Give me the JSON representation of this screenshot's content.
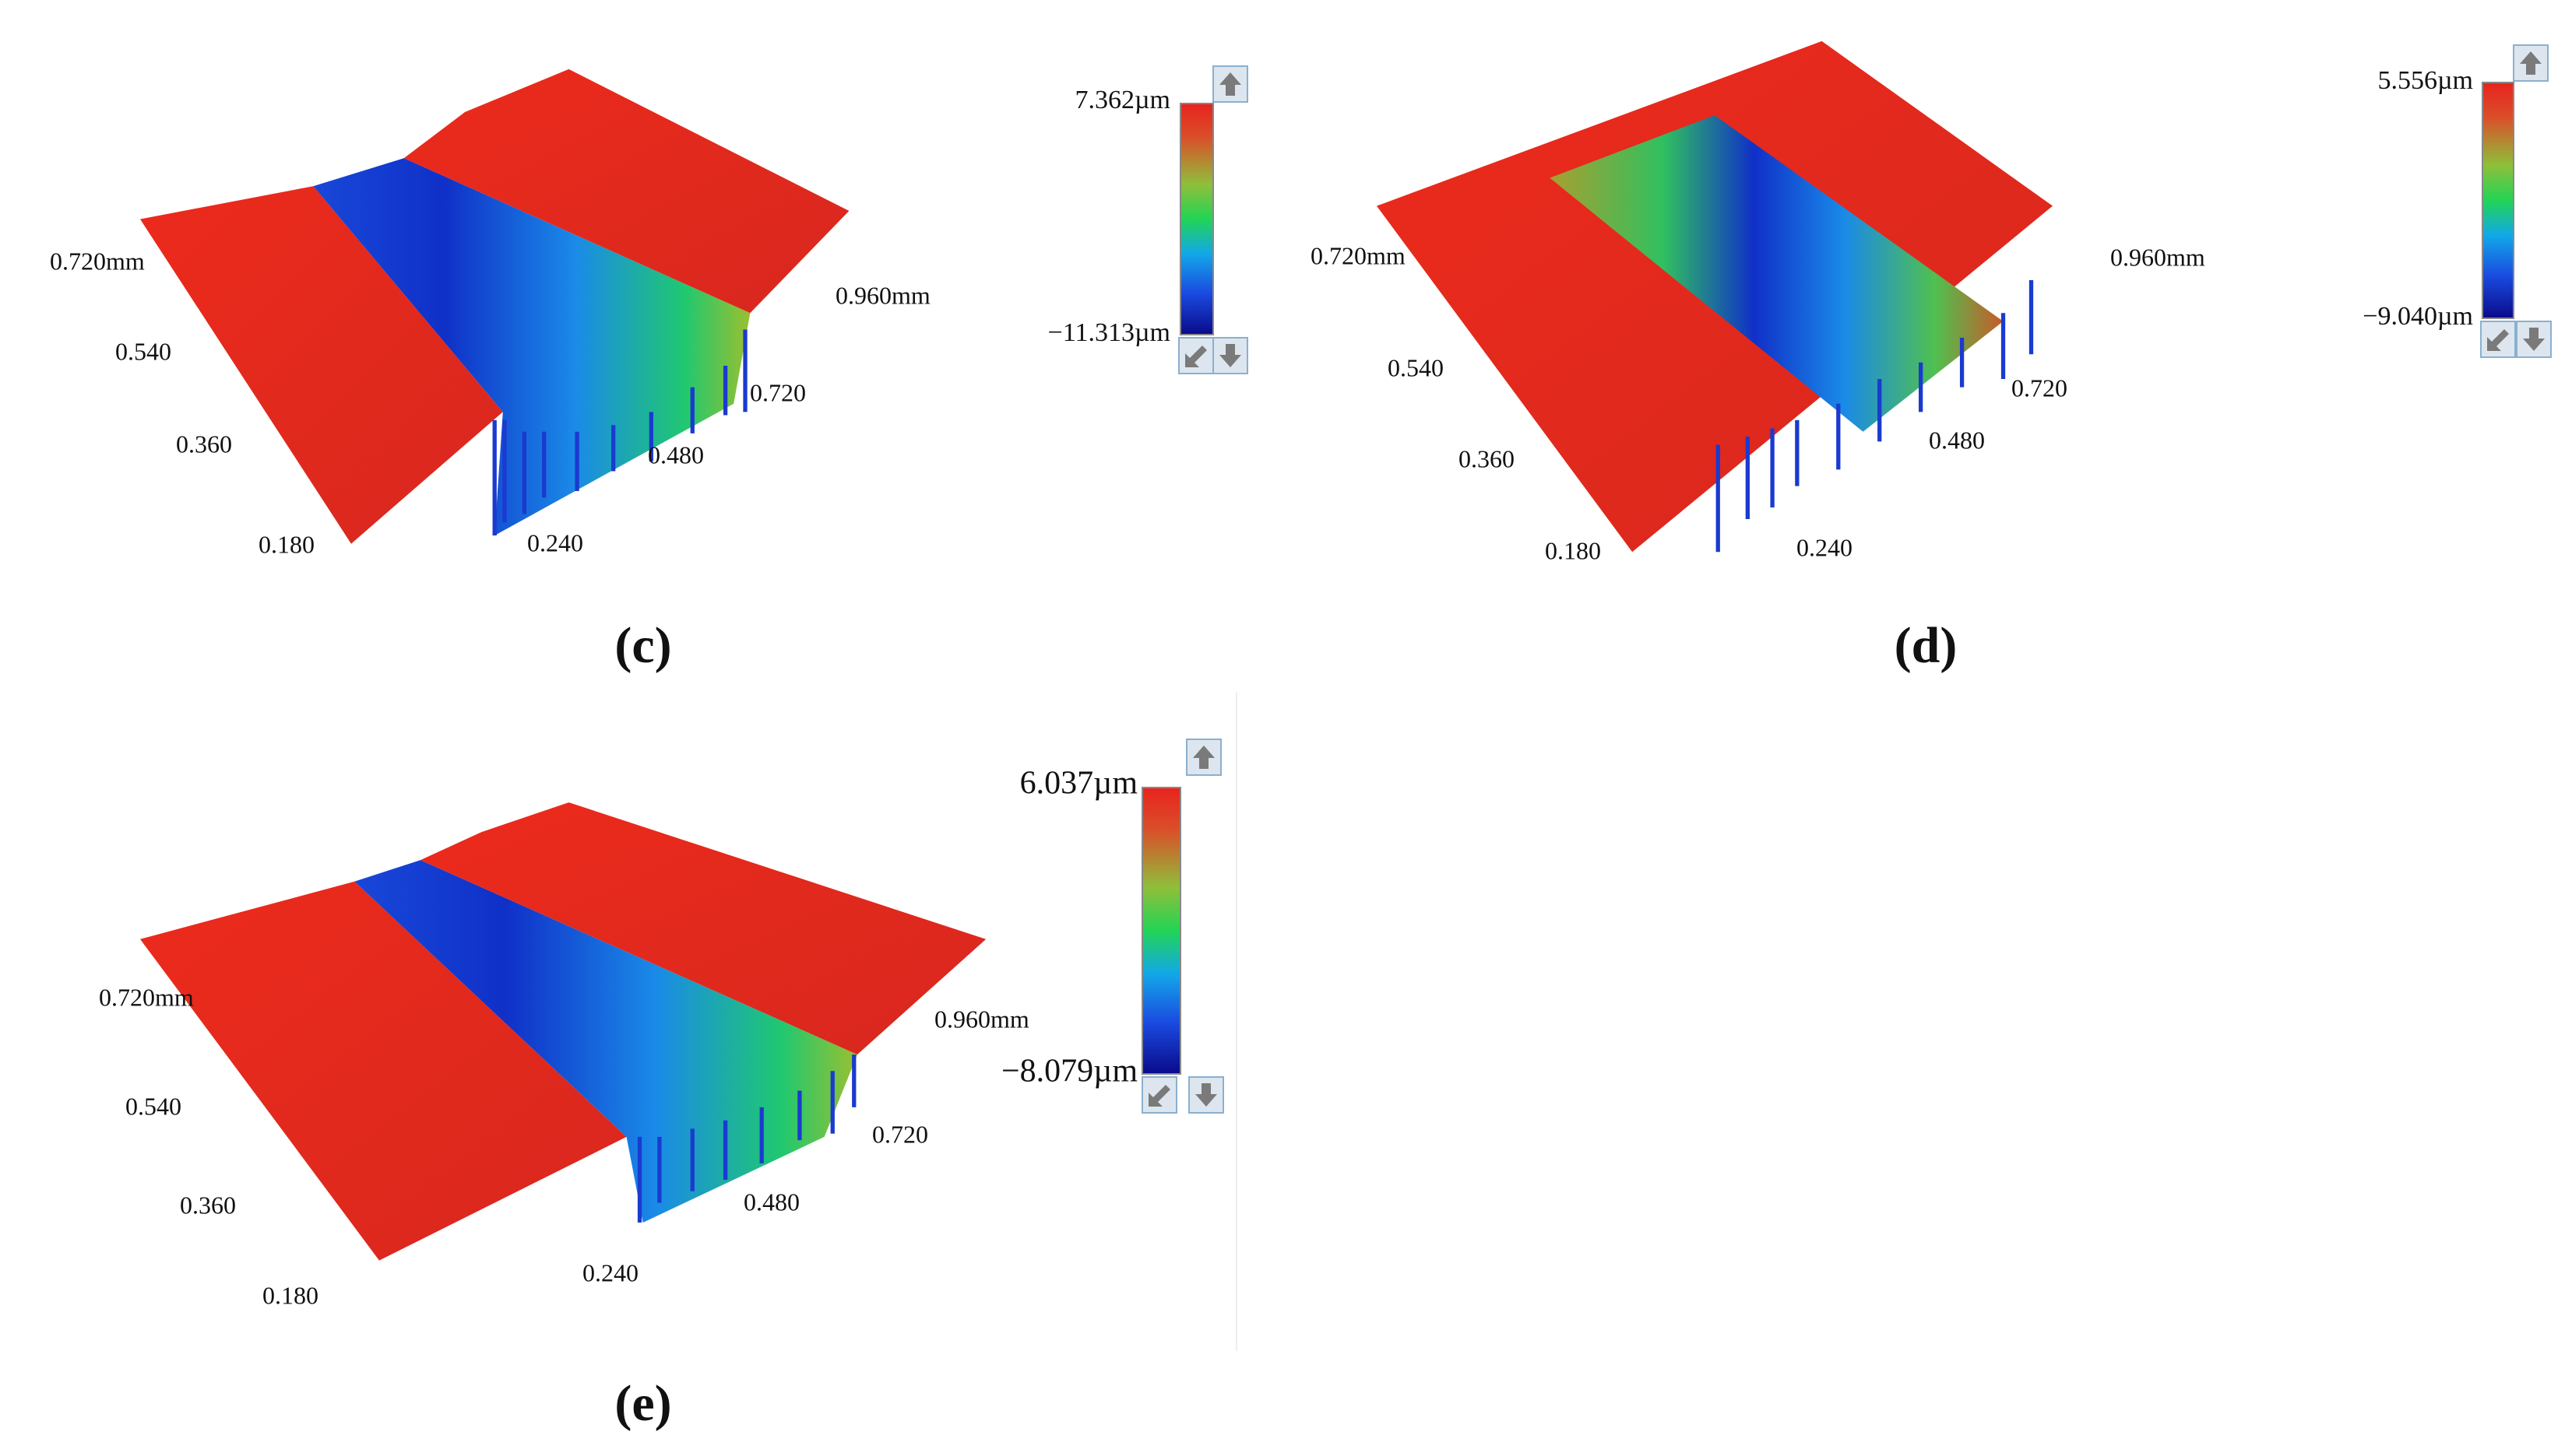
{
  "panels": [
    {
      "label": "(c)",
      "left_ticks": [
        "0.720mm",
        "0.540",
        "0.360",
        "0.180"
      ],
      "right_ticks": [
        "0.240",
        "0.480",
        "0.720",
        "0.960mm"
      ],
      "colorbar": {
        "max": "7.362µm",
        "min": "−11.313µm"
      }
    },
    {
      "label": "(d)",
      "left_ticks": [
        "0.720mm",
        "0.540",
        "0.360",
        "0.180"
      ],
      "right_ticks": [
        "0.240",
        "0.480",
        "0.720",
        "0.960mm"
      ],
      "colorbar": {
        "max": "5.556µm",
        "min": "−9.040µm"
      }
    },
    {
      "label": "(e)",
      "left_ticks": [
        "0.720mm",
        "0.540",
        "0.360",
        "0.180"
      ],
      "right_ticks": [
        "0.240",
        "0.480",
        "0.720",
        "0.960mm"
      ],
      "colorbar": {
        "max": "6.037µm",
        "min": "−8.079µm"
      }
    }
  ]
}
